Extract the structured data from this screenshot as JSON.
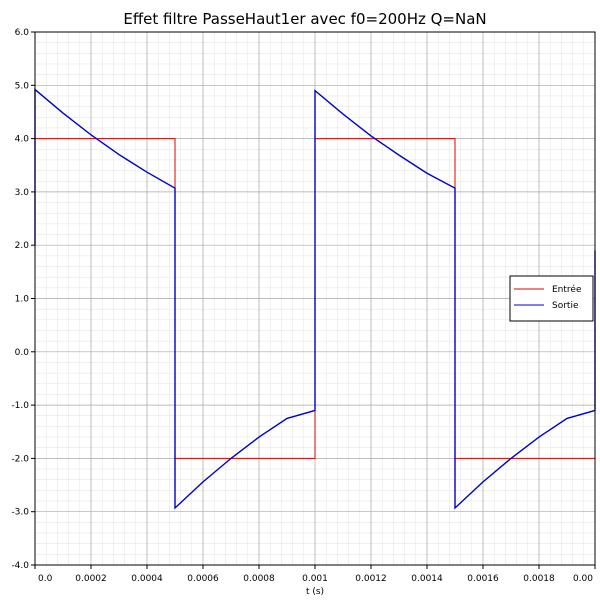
{
  "chart_data": {
    "type": "line",
    "title": "Effet filtre PasseHaut1er avec f0=200Hz Q=NaN",
    "xlabel": "t (s)",
    "ylabel": "",
    "xlim": [
      0,
      0.002
    ],
    "ylim": [
      -4,
      6
    ],
    "x_ticks": [
      0,
      0.0002,
      0.0004,
      0.0006,
      0.0008,
      0.001,
      0.0012,
      0.0014,
      0.0016,
      0.0018,
      0.002
    ],
    "x_tick_labels": [
      "0.0",
      "0.0002",
      "0.0004",
      "0.0006",
      "0.0008",
      "0.001",
      "0.0012",
      "0.0014",
      "0.0016",
      "0.0018",
      "0.00"
    ],
    "y_ticks": [
      6,
      5,
      4,
      3,
      2,
      1,
      0,
      -1,
      -2,
      -3,
      -4
    ],
    "y_tick_labels": [
      "6.0",
      "5.0",
      "4.0",
      "3.0",
      "2.0",
      "1.0",
      "0.0",
      "-1.0",
      "-2.0",
      "-3.0",
      "-4.0"
    ],
    "grid": true,
    "legend_position": "right",
    "series": [
      {
        "name": "Entrée",
        "color": "#dd0000",
        "x": [
          0,
          0,
          0.0005,
          0.0005,
          0.001,
          0.001,
          0.0015,
          0.0015,
          0.002,
          0.002
        ],
        "y": [
          2,
          4,
          4,
          -2,
          -2,
          4,
          4,
          -2,
          -2,
          4
        ]
      },
      {
        "name": "Sortie",
        "color": "#0000cc",
        "x": [
          0,
          0,
          0.0001,
          0.0002,
          0.0003,
          0.0004,
          0.0005,
          0.0005,
          0.0006,
          0.0007,
          0.0008,
          0.0009,
          0.001,
          0.001,
          0.0011,
          0.0012,
          0.0013,
          0.0014,
          0.0015,
          0.0015,
          0.0016,
          0.0017,
          0.0018,
          0.0019,
          0.002,
          0.002
        ],
        "y": [
          2,
          4.92,
          4.48,
          4.07,
          3.7,
          3.37,
          3.07,
          -2.93,
          -2.44,
          -2.0,
          -1.6,
          -1.25,
          -1.1,
          4.9,
          4.46,
          4.05,
          3.69,
          3.35,
          3.07,
          -2.93,
          -2.44,
          -2.0,
          -1.6,
          -1.25,
          -1.1,
          1.9
        ]
      }
    ]
  }
}
